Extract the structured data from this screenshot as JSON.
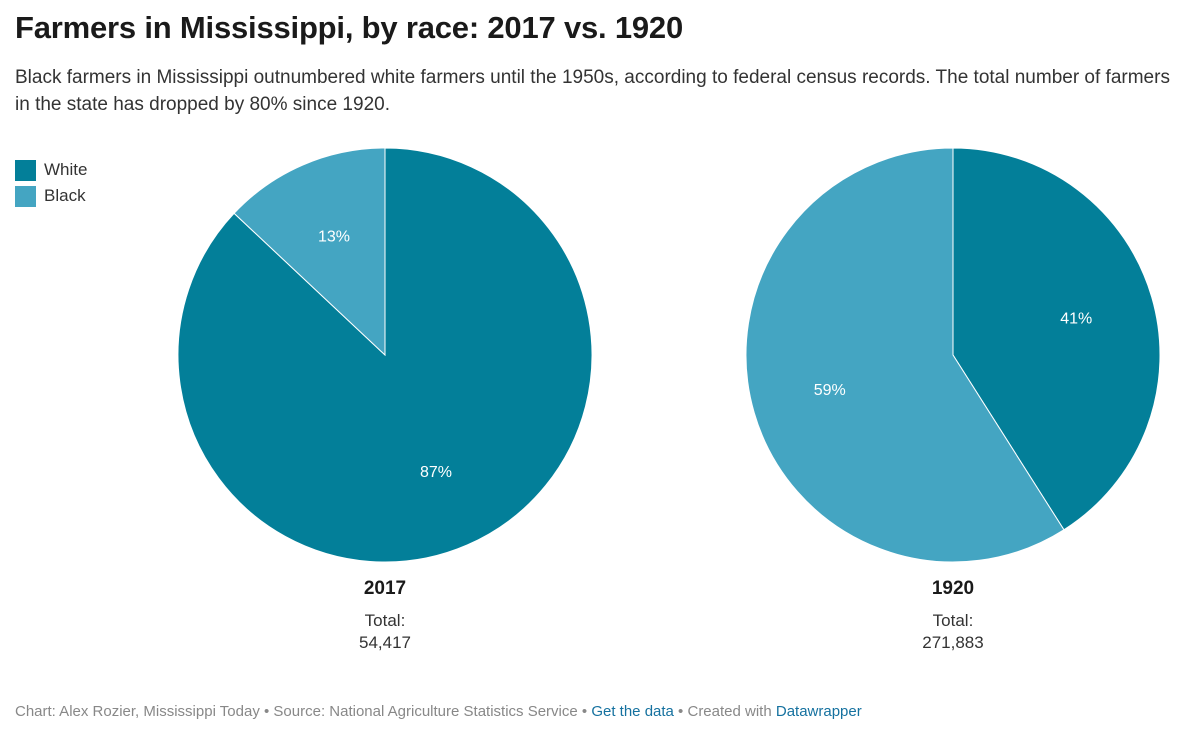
{
  "title": "Farmers in Mississippi, by race: 2017 vs. 1920",
  "subtitle": "Black farmers in Mississippi outnumbered white farmers until the 1950s, according to federal census records. The total number of farmers in the state has dropped by 80% since 1920.",
  "colors": {
    "white": "#037f99",
    "black": "#44a5c2"
  },
  "legend": [
    {
      "label": "White",
      "color": "#037f99"
    },
    {
      "label": "Black",
      "color": "#44a5c2"
    }
  ],
  "chart_data": [
    {
      "type": "pie",
      "title": "2017",
      "total_label": "Total:",
      "total_value": "54,417",
      "slices": [
        {
          "name": "White",
          "value": 87,
          "label": "87%",
          "color": "#037f99"
        },
        {
          "name": "Black",
          "value": 13,
          "label": "13%",
          "color": "#44a5c2"
        }
      ]
    },
    {
      "type": "pie",
      "title": "1920",
      "total_label": "Total:",
      "total_value": "271,883",
      "slices": [
        {
          "name": "White",
          "value": 41,
          "label": "41%",
          "color": "#037f99"
        },
        {
          "name": "Black",
          "value": 59,
          "label": "59%",
          "color": "#44a5c2"
        }
      ]
    }
  ],
  "footer": {
    "credit": "Chart: Alex Rozier, Mississippi Today",
    "sep1": " • ",
    "source": "Source: National Agriculture Statistics Service",
    "sep2": " • ",
    "get_data": "Get the data",
    "sep3": " • ",
    "created_with": "Created with ",
    "datawrapper": "Datawrapper"
  }
}
